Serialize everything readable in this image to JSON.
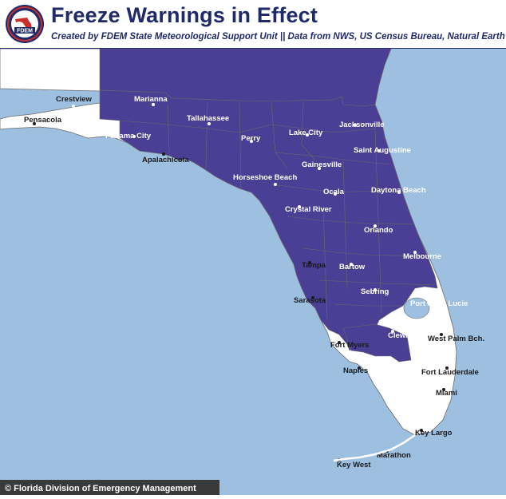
{
  "header": {
    "title": "Freeze Warnings in Effect",
    "subtitle": "Created by FDEM State Meteorological Support Unit || Data from NWS, US Census Bureau, Natural Earth",
    "logo_text": "FDEM"
  },
  "footer": {
    "credit": "© Florida Division of Emergency Management"
  },
  "colors": {
    "warning_fill": "#4a3f94",
    "land": "#ffffff",
    "water": "#9dbfe0",
    "county_border": "#6a6a6a",
    "title_color": "#1f2a6b"
  },
  "cities": [
    {
      "name": "Crestview",
      "in_warning": false
    },
    {
      "name": "Marianna",
      "in_warning": true
    },
    {
      "name": "Pensacola",
      "in_warning": false
    },
    {
      "name": "Tallahassee",
      "in_warning": true
    },
    {
      "name": "Panama City",
      "in_warning": false
    },
    {
      "name": "Apalachicola",
      "in_warning": false
    },
    {
      "name": "Perry",
      "in_warning": true
    },
    {
      "name": "Lake City",
      "in_warning": true
    },
    {
      "name": "Jacksonville",
      "in_warning": true
    },
    {
      "name": "Saint Augustine",
      "in_warning": true
    },
    {
      "name": "Gainesville",
      "in_warning": true
    },
    {
      "name": "Horseshoe Beach",
      "in_warning": true
    },
    {
      "name": "Ocala",
      "in_warning": true
    },
    {
      "name": "Daytona Beach",
      "in_warning": true
    },
    {
      "name": "Crystal River",
      "in_warning": true
    },
    {
      "name": "Orlando",
      "in_warning": true
    },
    {
      "name": "Tampa",
      "in_warning": false
    },
    {
      "name": "Bartow",
      "in_warning": true
    },
    {
      "name": "Melbourne",
      "in_warning": true
    },
    {
      "name": "Sebring",
      "in_warning": true
    },
    {
      "name": "Sarasota",
      "in_warning": false
    },
    {
      "name": "Port Saint Lucie",
      "in_warning": true
    },
    {
      "name": "Clewiston",
      "in_warning": true
    },
    {
      "name": "Fort Myers",
      "in_warning": false
    },
    {
      "name": "West Palm Bch.",
      "in_warning": false
    },
    {
      "name": "Naples",
      "in_warning": false
    },
    {
      "name": "Fort Lauderdale",
      "in_warning": false
    },
    {
      "name": "Miami",
      "in_warning": false
    },
    {
      "name": "Key Largo",
      "in_warning": false
    },
    {
      "name": "Marathon",
      "in_warning": false
    },
    {
      "name": "Key West",
      "in_warning": false
    }
  ]
}
